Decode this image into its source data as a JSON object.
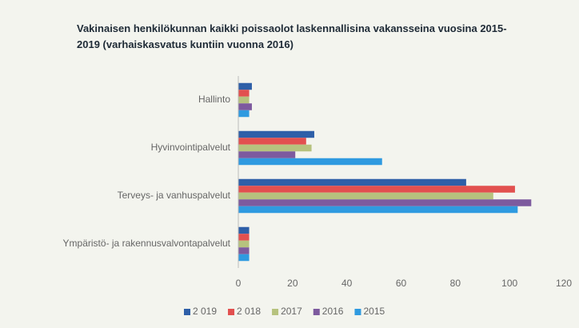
{
  "chart_data": {
    "type": "barh",
    "title": "Vakinaisen henkilökunnan kaikki poissaolot laskennallisina vakansseina vuosina 2015-2019 (varhaiskasvatus kuntiin vuonna 2016)",
    "categories": [
      "Hallinto",
      "Hyvinvointipalvelut",
      "Terveys- ja vanhuspalvelut",
      "Ympäristö- ja rakennusvalvontapalvelut"
    ],
    "series": [
      {
        "name": "2 019",
        "color": "#2e5fa8",
        "values": [
          5,
          28,
          84,
          4
        ]
      },
      {
        "name": "2 018",
        "color": "#e2504f",
        "values": [
          4,
          25,
          102,
          4
        ]
      },
      {
        "name": "2017",
        "color": "#b6c27e",
        "values": [
          4,
          27,
          94,
          4
        ]
      },
      {
        "name": "2016",
        "color": "#7d5a9e",
        "values": [
          5,
          21,
          108,
          4
        ]
      },
      {
        "name": "2015",
        "color": "#2f9ae0",
        "values": [
          4,
          53,
          103,
          4
        ]
      }
    ],
    "xlim": [
      0,
      120
    ],
    "xticks": [
      0,
      20,
      40,
      60,
      80,
      100,
      120
    ],
    "legend": "bottom"
  }
}
